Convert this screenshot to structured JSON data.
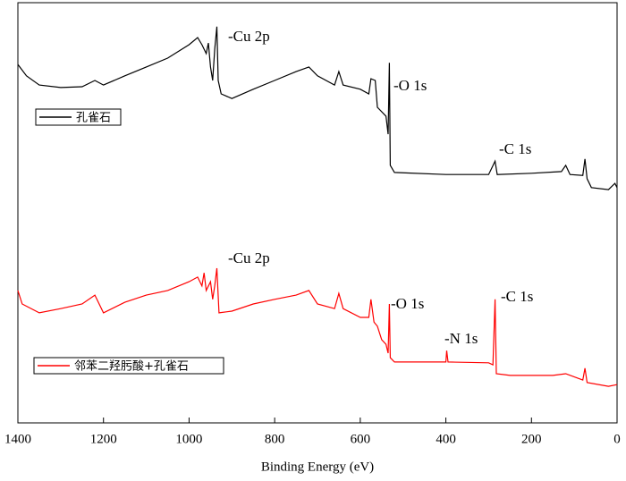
{
  "chart_data": {
    "type": "line",
    "x_label": "Binding Energy (eV)",
    "xlim": [
      1400,
      0
    ],
    "xticks": [
      1400,
      1200,
      1000,
      800,
      600,
      400,
      200,
      0
    ],
    "ylim": [
      0,
      100
    ],
    "series": [
      {
        "name": "孔雀石",
        "color": "#000000",
        "x": [
          1400,
          1380,
          1350,
          1300,
          1250,
          1220,
          1200,
          1150,
          1100,
          1050,
          1000,
          980,
          970,
          960,
          955,
          950,
          945,
          940,
          935,
          932,
          925,
          900,
          850,
          800,
          750,
          720,
          700,
          660,
          650,
          640,
          600,
          580,
          575,
          565,
          560,
          540,
          535,
          532,
          530,
          520,
          400,
          300,
          285,
          280,
          200,
          130,
          120,
          110,
          80,
          75,
          70,
          60,
          20,
          5,
          0
        ],
        "values": [
          85.3,
          82.6,
          80.4,
          79.8,
          80.0,
          81.5,
          80.4,
          82.6,
          84.7,
          86.8,
          90.0,
          91.7,
          90.0,
          87.9,
          90.4,
          84.7,
          81.5,
          88.9,
          94.3,
          81.5,
          78.3,
          77.2,
          79.4,
          81.5,
          83.6,
          84.7,
          82.6,
          80.4,
          83.6,
          80.4,
          79.4,
          78.3,
          81.9,
          81.5,
          75.1,
          73.0,
          68.7,
          85.7,
          61.3,
          59.6,
          59.1,
          59.1,
          62.3,
          59.1,
          59.4,
          59.8,
          61.3,
          59.1,
          58.9,
          62.8,
          58.1,
          56.0,
          55.5,
          57.0,
          56.0
        ]
      },
      {
        "name": "邻苯二羟肟酸+孔雀石",
        "color": "#ff0000",
        "x": [
          1400,
          1390,
          1350,
          1300,
          1250,
          1220,
          1200,
          1150,
          1100,
          1050,
          1000,
          980,
          970,
          965,
          960,
          950,
          945,
          940,
          935,
          930,
          900,
          850,
          800,
          750,
          720,
          700,
          660,
          650,
          640,
          600,
          580,
          575,
          568,
          560,
          550,
          540,
          535,
          532,
          530,
          520,
          450,
          400,
          398,
          395,
          300,
          290,
          285,
          282,
          250,
          150,
          120,
          80,
          75,
          70,
          20,
          0
        ],
        "values": [
          31.5,
          28.3,
          26.2,
          27.2,
          28.3,
          30.4,
          26.2,
          28.7,
          30.4,
          31.5,
          33.6,
          34.7,
          32.6,
          35.7,
          31.5,
          33.6,
          29.4,
          32.6,
          36.8,
          26.2,
          26.6,
          28.3,
          29.4,
          30.4,
          31.5,
          28.3,
          27.2,
          30.8,
          27.2,
          25.1,
          25.1,
          29.4,
          24.0,
          23.0,
          19.8,
          18.7,
          16.6,
          28.3,
          15.5,
          14.5,
          14.5,
          14.5,
          17.2,
          14.5,
          14.3,
          13.8,
          29.4,
          11.7,
          11.3,
          11.3,
          11.7,
          10.2,
          13.0,
          9.6,
          8.7,
          9.1
        ]
      }
    ],
    "annotations": [
      "-Cu 2p",
      "-O 1s",
      "-C 1s",
      "-Cu 2p",
      "-O 1s",
      "-N 1s",
      "-C 1s"
    ]
  }
}
